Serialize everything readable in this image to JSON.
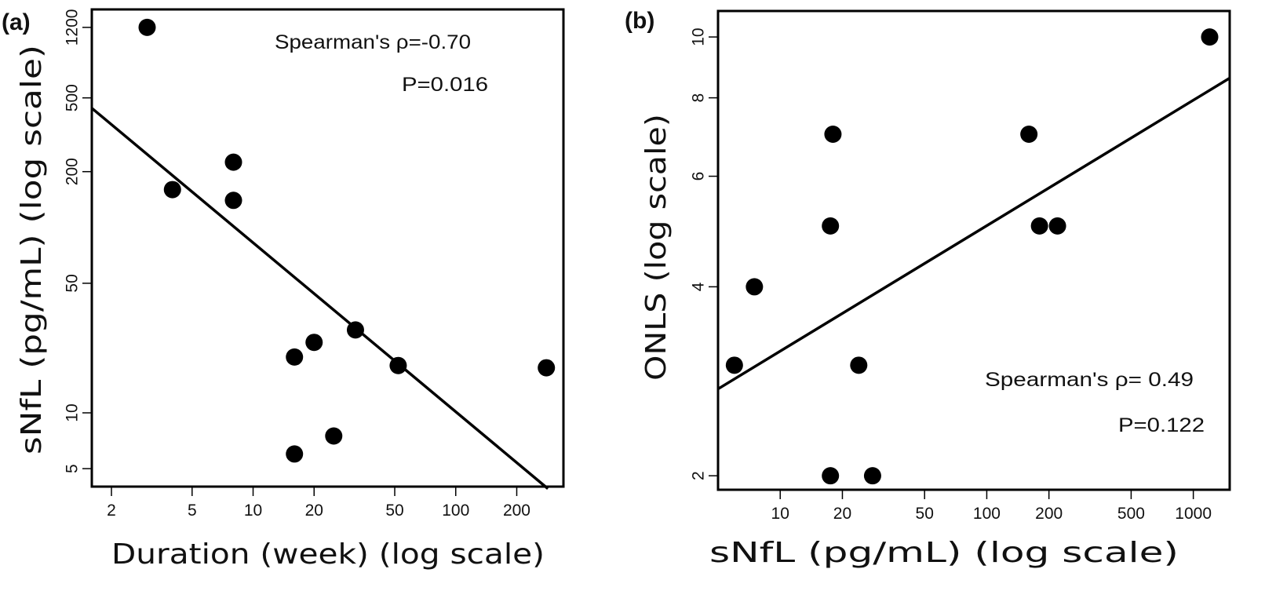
{
  "chart_data": [
    {
      "type": "scatter",
      "panel_label": "(a)",
      "xlabel": "Duration (week) (log scale)",
      "ylabel": "sNfL (pg/mL) (log scale)",
      "x_scale": "log",
      "y_scale": "log",
      "xlim": [
        1.6,
        340
      ],
      "ylim": [
        4,
        1500
      ],
      "x_ticks": [
        2,
        5,
        10,
        20,
        50,
        100,
        200
      ],
      "x_tick_labels": [
        "2",
        "5",
        "10",
        "20",
        "50",
        "100",
        "200"
      ],
      "y_ticks": [
        5,
        10,
        50,
        200,
        500,
        1200
      ],
      "y_tick_labels": [
        "5",
        "10",
        "50",
        "200",
        "500",
        "1200"
      ],
      "points": [
        {
          "x": 3,
          "y": 1200
        },
        {
          "x": 4,
          "y": 160
        },
        {
          "x": 8,
          "y": 225
        },
        {
          "x": 8,
          "y": 140
        },
        {
          "x": 16,
          "y": 20
        },
        {
          "x": 20,
          "y": 24
        },
        {
          "x": 16,
          "y": 6
        },
        {
          "x": 25,
          "y": 7.5
        },
        {
          "x": 32,
          "y": 28
        },
        {
          "x": 52,
          "y": 18
        },
        {
          "x": 280,
          "y": 17.5
        }
      ],
      "fit_line": {
        "x": [
          1.6,
          285
        ],
        "y": [
          440,
          3.9
        ]
      },
      "annotations": [
        "Spearman's ρ=-0.70",
        "P=0.016"
      ]
    },
    {
      "type": "scatter",
      "panel_label": "(b)",
      "xlabel": "sNfL (pg/mL) (log scale)",
      "ylabel": "ONLS (log scale)",
      "x_scale": "log",
      "y_scale": "log",
      "xlim": [
        5,
        1500
      ],
      "ylim": [
        1.9,
        11
      ],
      "x_ticks": [
        10,
        20,
        50,
        100,
        200,
        500,
        1000
      ],
      "x_tick_labels": [
        "10",
        "20",
        "50",
        "100",
        "200",
        "500",
        "1000"
      ],
      "y_ticks": [
        2,
        4,
        6,
        8,
        10
      ],
      "y_tick_labels": [
        "2",
        "4",
        "6",
        "8",
        "10"
      ],
      "points": [
        {
          "x": 6,
          "y": 3
        },
        {
          "x": 7.5,
          "y": 4
        },
        {
          "x": 18,
          "y": 7
        },
        {
          "x": 17.5,
          "y": 5
        },
        {
          "x": 24,
          "y": 3
        },
        {
          "x": 17.5,
          "y": 2
        },
        {
          "x": 28,
          "y": 2
        },
        {
          "x": 160,
          "y": 7
        },
        {
          "x": 180,
          "y": 5
        },
        {
          "x": 220,
          "y": 5
        },
        {
          "x": 1200,
          "y": 10
        }
      ],
      "fit_line": {
        "x": [
          5,
          1500
        ],
        "y": [
          2.75,
          8.6
        ]
      },
      "annotations": [
        "Spearman's ρ= 0.49",
        "P=0.122"
      ]
    }
  ]
}
